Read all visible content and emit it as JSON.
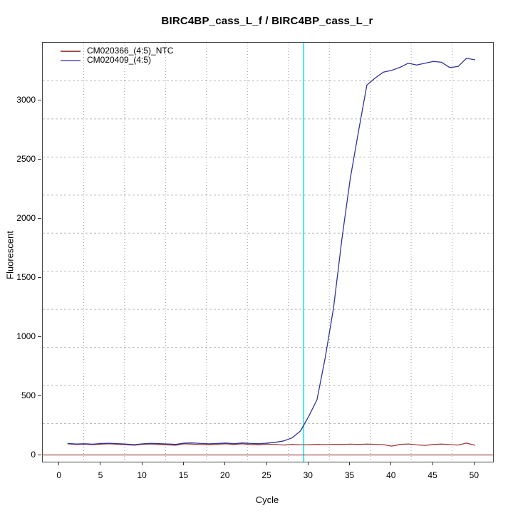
{
  "figure": {
    "title": "BIRC4BP_cass_L_f / BIRC4BP_cass_L_r",
    "xlabel": "Cycle",
    "ylabel": "Fluorescent"
  },
  "legend": {
    "items": [
      {
        "label": "CM020366_(4:5)_NTC",
        "color": "#A54B4B"
      },
      {
        "label": "CM020409_(4:5)",
        "color": "#7D7DC8"
      }
    ]
  },
  "chart_data": {
    "type": "line",
    "title": "BIRC4BP_cass_L_f / BIRC4BP_cass_L_r",
    "xlabel": "Cycle",
    "ylabel": "Fluorescent",
    "xlim": [
      -2.03,
      52.2
    ],
    "ylim": [
      -54,
      3488
    ],
    "x_ticks": [
      0,
      5,
      10,
      15,
      20,
      25,
      30,
      35,
      40,
      45,
      50
    ],
    "y_ticks": [
      0,
      500,
      1000,
      1500,
      2000,
      2500,
      3000
    ],
    "grid": {
      "nx": 11,
      "ny": 11,
      "style": "dotted",
      "v_color": "#999999",
      "h_color": "#bbbbbb"
    },
    "x": [
      1,
      2,
      3,
      4,
      5,
      6,
      7,
      8,
      9,
      10,
      11,
      12,
      13,
      14,
      15,
      16,
      17,
      18,
      19,
      20,
      21,
      22,
      23,
      24,
      25,
      26,
      27,
      28,
      29,
      30,
      31,
      32,
      33,
      34,
      35,
      36,
      37,
      38,
      39,
      40,
      41,
      42,
      43,
      44,
      45,
      46,
      47,
      48,
      49,
      50
    ],
    "series": [
      {
        "name": "CM020366_(4:5)_NTC",
        "color": "#9B3A3A",
        "values": [
          98,
          92,
          95,
          90,
          94,
          97,
          93,
          90,
          86,
          93,
          96,
          92,
          89,
          86,
          97,
          94,
          91,
          88,
          93,
          97,
          91,
          97,
          92,
          88,
          95,
          91,
          87,
          92,
          88,
          90,
          92,
          90,
          93,
          92,
          94,
          92,
          95,
          93,
          90,
          78,
          92,
          96,
          88,
          84,
          92,
          95,
          90,
          87,
          103,
          85
        ]
      },
      {
        "name": "CM020409_(4:5)",
        "color": "#32329B",
        "values": [
          100,
          96,
          98,
          94,
          100,
          102,
          99,
          95,
          90,
          97,
          101,
          99,
          96,
          93,
          103,
          105,
          100,
          97,
          100,
          104,
          98,
          105,
          100,
          98,
          103,
          110,
          122,
          148,
          205,
          330,
          470,
          830,
          1250,
          1830,
          2340,
          2740,
          3130,
          3190,
          3240,
          3255,
          3280,
          3315,
          3300,
          3315,
          3330,
          3323,
          3278,
          3288,
          3356,
          3344
        ]
      }
    ],
    "baseline_rule": {
      "y": 3,
      "color": "#9B3A3A"
    },
    "threshold_cycle_line": {
      "x": 29.4,
      "color": "#00E5EE"
    }
  }
}
